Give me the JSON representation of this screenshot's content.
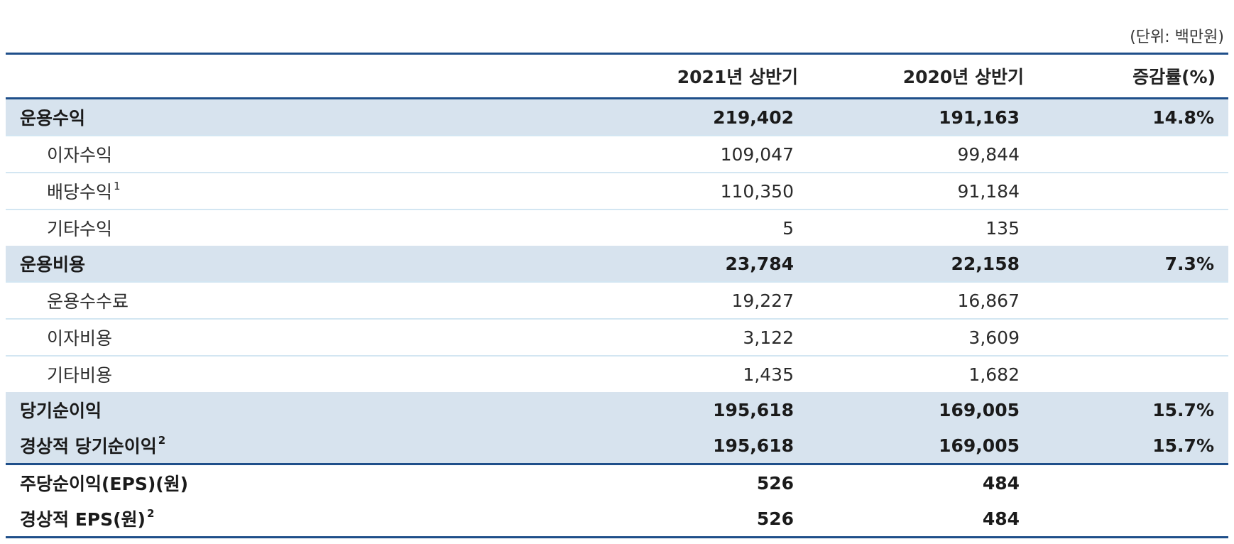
{
  "unit_note": "(단위: 백만원)",
  "headers": [
    "",
    "2021년 상반기",
    "2020년 상반기",
    "증감률(%)"
  ],
  "rows": [
    {
      "label": "운용수익",
      "note": "",
      "v2021": "219,402",
      "v2020": "191,163",
      "change": "14.8%",
      "style": "highlight"
    },
    {
      "label": "이자수익",
      "note": "",
      "v2021": "109,047",
      "v2020": "99,844",
      "change": "",
      "style": "sub"
    },
    {
      "label": "배당수익",
      "note": "1",
      "v2021": "110,350",
      "v2020": "91,184",
      "change": "",
      "style": "sub"
    },
    {
      "label": "기타수익",
      "note": "",
      "v2021": "5",
      "v2020": "135",
      "change": "",
      "style": "sub"
    },
    {
      "label": "운용비용",
      "note": "",
      "v2021": "23,784",
      "v2020": "22,158",
      "change": "7.3%",
      "style": "highlight"
    },
    {
      "label": "운용수수료",
      "note": "",
      "v2021": "19,227",
      "v2020": "16,867",
      "change": "",
      "style": "sub"
    },
    {
      "label": "이자비용",
      "note": "",
      "v2021": "3,122",
      "v2020": "3,609",
      "change": "",
      "style": "sub"
    },
    {
      "label": "기타비용",
      "note": "",
      "v2021": "1,435",
      "v2020": "1,682",
      "change": "",
      "style": "sub"
    },
    {
      "label": "당기순이익",
      "note": "",
      "v2021": "195,618",
      "v2020": "169,005",
      "change": "15.7%",
      "style": "highlight"
    },
    {
      "label": "경상적 당기순이익",
      "note": "2",
      "v2021": "195,618",
      "v2020": "169,005",
      "change": "15.7%",
      "style": "highlight"
    },
    {
      "label": "주당순이익(EPS)(원)",
      "note": "",
      "v2021": "526",
      "v2020": "484",
      "change": "",
      "style": "bold-topline"
    },
    {
      "label": "경상적 EPS(원)",
      "note": "2",
      "v2021": "526",
      "v2020": "484",
      "change": "",
      "style": "bold-last"
    }
  ],
  "colors": {
    "highlight_bg": "#d7e3ee",
    "rule": "#1f4f8a",
    "sub_divider": "#d3e6f2"
  }
}
